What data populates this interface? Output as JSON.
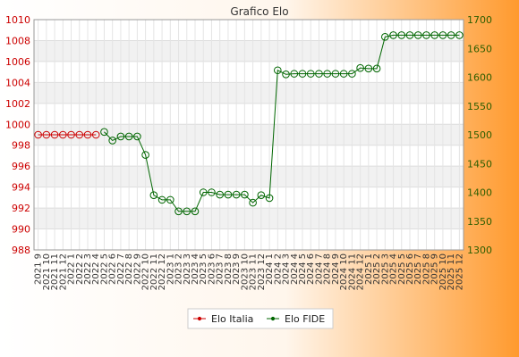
{
  "chart_data": {
    "type": "line",
    "title": "Grafico Elo",
    "categories": [
      "2021 9",
      "2021 10",
      "2021 11",
      "2021 12",
      "2022 1",
      "2022 2",
      "2022 3",
      "2022 4",
      "2022 5",
      "2022 6",
      "2022 7",
      "2022 8",
      "2022 9",
      "2022 10",
      "2022 11",
      "2022 12",
      "2023 1",
      "2023 2",
      "2023 3",
      "2023 4",
      "2023 5",
      "2023 6",
      "2023 7",
      "2023 8",
      "2023 9",
      "2023 10",
      "2023 11",
      "2023 12",
      "2024 1",
      "2024 2",
      "2024 3",
      "2024 4",
      "2024 5",
      "2024 6",
      "2024 7",
      "2024 8",
      "2024 9",
      "2024 10",
      "2024 11",
      "2024 12",
      "2025 1",
      "2025 2",
      "2025 3",
      "2025 4",
      "2025 5",
      "2025 6",
      "2025 7",
      "2025 8",
      "2025 9",
      "2025 10",
      "2025 11",
      "2025 12"
    ],
    "left_axis": {
      "min": 988,
      "max": 1010,
      "ticks": [
        988,
        990,
        992,
        994,
        996,
        998,
        1000,
        1002,
        1004,
        1006,
        1008,
        1010
      ]
    },
    "right_axis": {
      "min": 1300,
      "max": 1700,
      "ticks": [
        1300,
        1350,
        1400,
        1450,
        1500,
        1550,
        1600,
        1650,
        1700
      ]
    },
    "series": [
      {
        "name": "Elo Italia",
        "axis": "left",
        "color": "#cc0000",
        "values": [
          999,
          999,
          999,
          999,
          999,
          999,
          999,
          999,
          null,
          null,
          null,
          null,
          null,
          null,
          null,
          null,
          null,
          null,
          null,
          null,
          null,
          null,
          null,
          null,
          null,
          null,
          null,
          null,
          null,
          null,
          null,
          null,
          null,
          null,
          null,
          null,
          null,
          null,
          null,
          null,
          null,
          null,
          null,
          null,
          null,
          null,
          null,
          null,
          null,
          null,
          null,
          null
        ]
      },
      {
        "name": "Elo FIDE",
        "axis": "right",
        "color": "#006600",
        "values": [
          null,
          null,
          null,
          null,
          null,
          null,
          null,
          null,
          1505,
          1490,
          1497,
          1497,
          1497,
          1465,
          1395,
          1387,
          1387,
          1367,
          1367,
          1367,
          1400,
          1400,
          1396,
          1396,
          1396,
          1396,
          1382,
          1395,
          1390,
          1612,
          1605,
          1606,
          1606,
          1606,
          1606,
          1606,
          1606,
          1606,
          1606,
          1616,
          1615,
          1615,
          1670,
          1673,
          1673,
          1673,
          1673,
          1673,
          1673,
          1673,
          1673,
          1673
        ]
      }
    ],
    "grid": true,
    "legend_position": "bottom"
  }
}
